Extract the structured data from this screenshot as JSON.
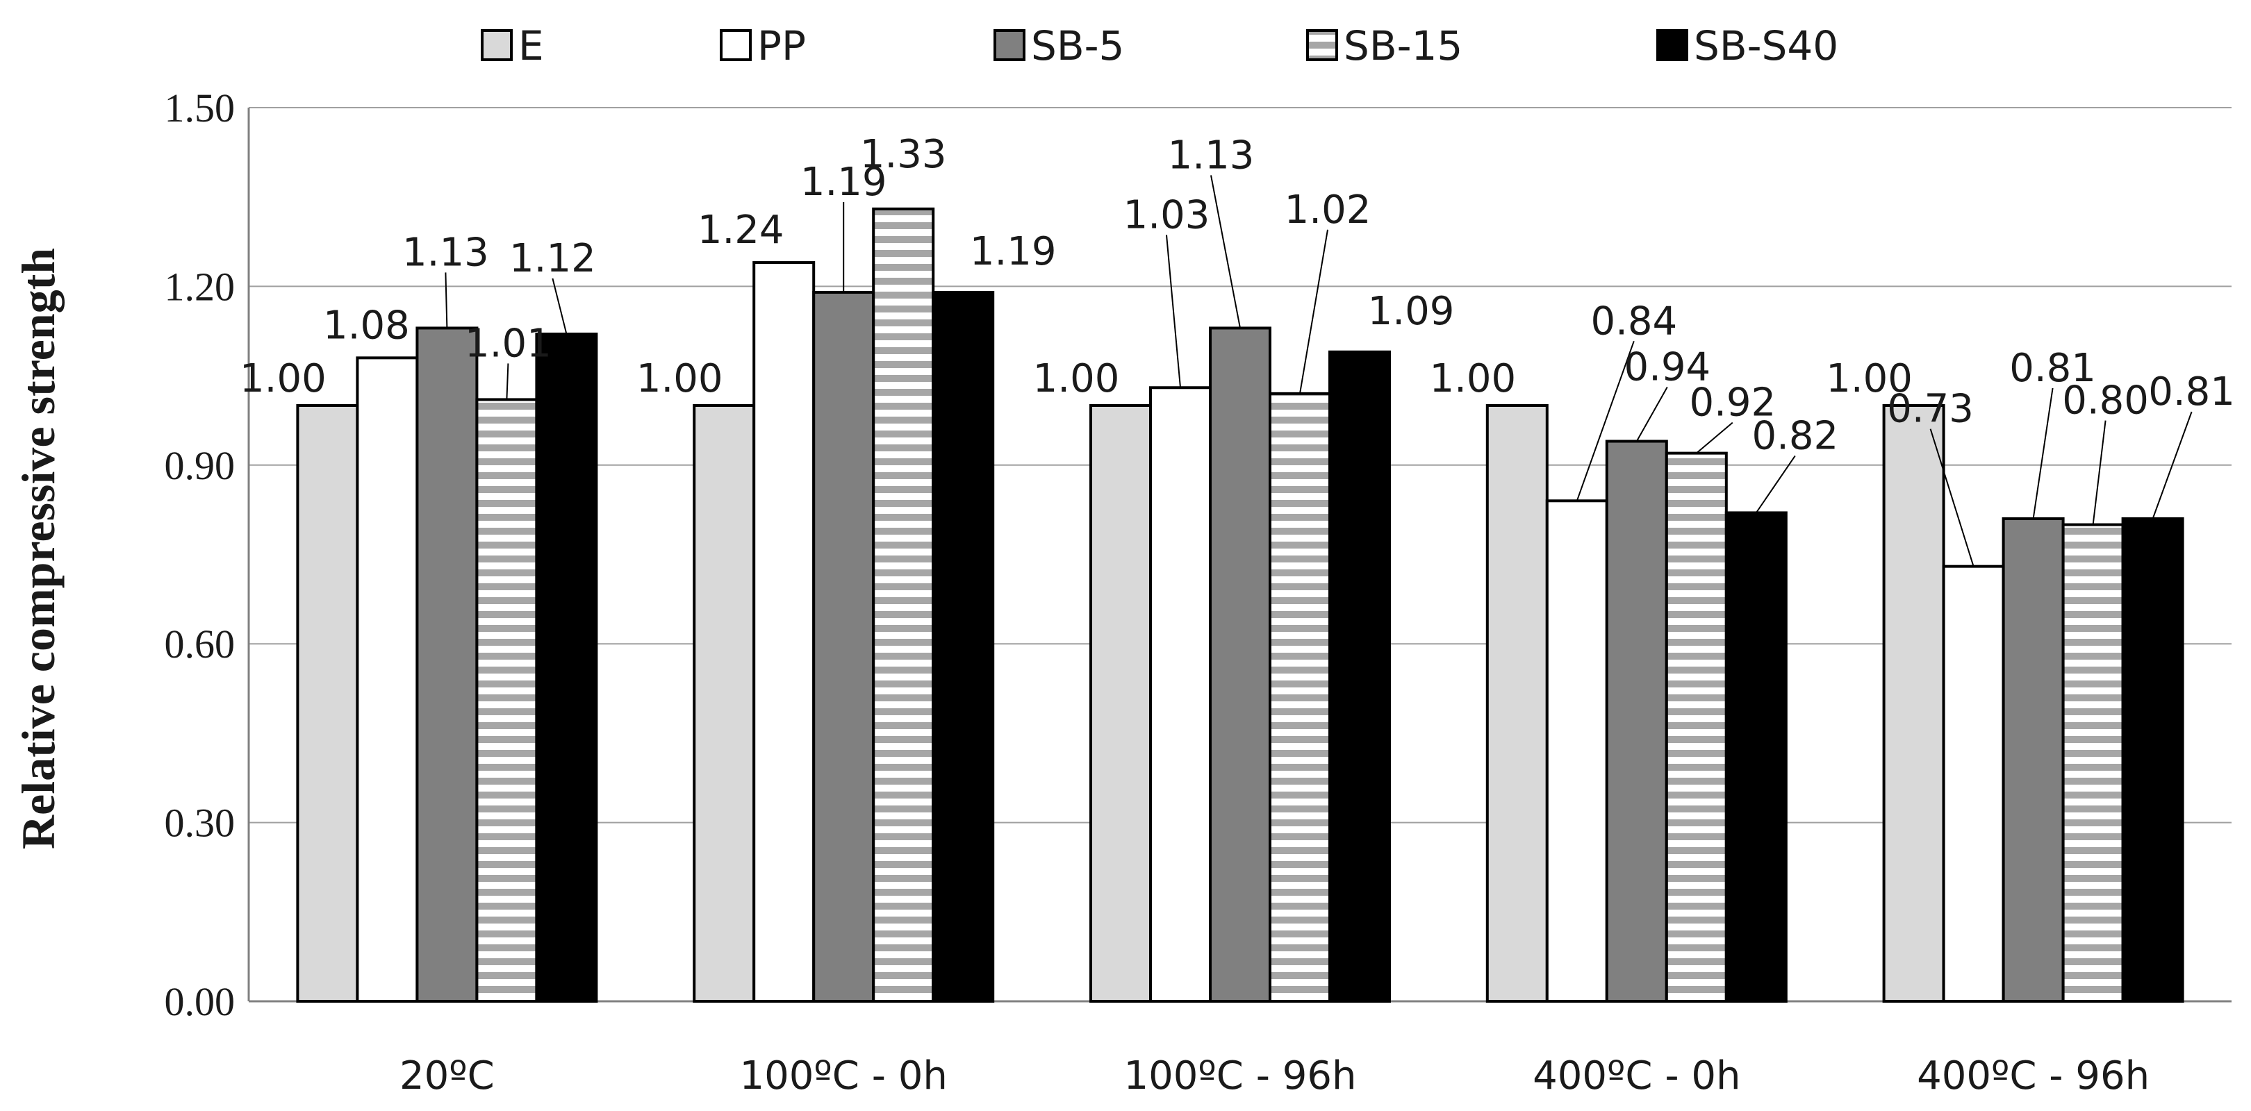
{
  "chart_data": {
    "type": "bar",
    "title": "",
    "xlabel": "",
    "ylabel": "Relative compressive strength",
    "ylim": [
      0,
      1.5
    ],
    "yticks": [
      "0.00",
      "0.30",
      "0.60",
      "0.90",
      "1.20",
      "1.50"
    ],
    "ytick_values": [
      0,
      0.3,
      0.6,
      0.9,
      1.2,
      1.5
    ],
    "grid": true,
    "legend_position": "top",
    "categories": [
      "20ºC",
      "100ºC - 0h",
      "100ºC - 96h",
      "400ºC - 0h",
      "400ºC - 96h"
    ],
    "series": [
      {
        "name": "E",
        "fill": "light-gray",
        "values": [
          1.0,
          1.0,
          1.0,
          1.0,
          1.0
        ],
        "labels": [
          "1.00",
          "1.00",
          "1.00",
          "1.00",
          "1.00"
        ]
      },
      {
        "name": "PP",
        "fill": "white",
        "values": [
          1.08,
          1.24,
          1.03,
          0.84,
          0.73
        ],
        "labels": [
          "1.08",
          "1.24",
          "1.03",
          "0.84",
          "0.73"
        ]
      },
      {
        "name": "SB-5",
        "fill": "dark-gray",
        "values": [
          1.13,
          1.19,
          1.13,
          0.94,
          0.81
        ],
        "labels": [
          "1.13",
          "1.19",
          "1.13",
          "0.94",
          "0.81"
        ]
      },
      {
        "name": "SB-15",
        "fill": "horizontal-stripes",
        "values": [
          1.01,
          1.33,
          1.02,
          0.92,
          0.8
        ],
        "labels": [
          "1.01",
          "1.33",
          "1.02",
          "0.92",
          "0.80"
        ]
      },
      {
        "name": "SB-S40",
        "fill": "black",
        "values": [
          1.12,
          1.19,
          1.09,
          0.82,
          0.81
        ],
        "labels": [
          "1.12",
          "1.19",
          "1.09",
          "0.82",
          "0.81"
        ]
      }
    ],
    "colors": {
      "light_gray": "#d9d9d9",
      "white": "#ffffff",
      "dark_gray": "#808080",
      "stripe_gray": "#a6a6a6",
      "black": "#000000",
      "grid": "#a0a0a0",
      "axis": "#808080",
      "outline": "#000000"
    }
  }
}
